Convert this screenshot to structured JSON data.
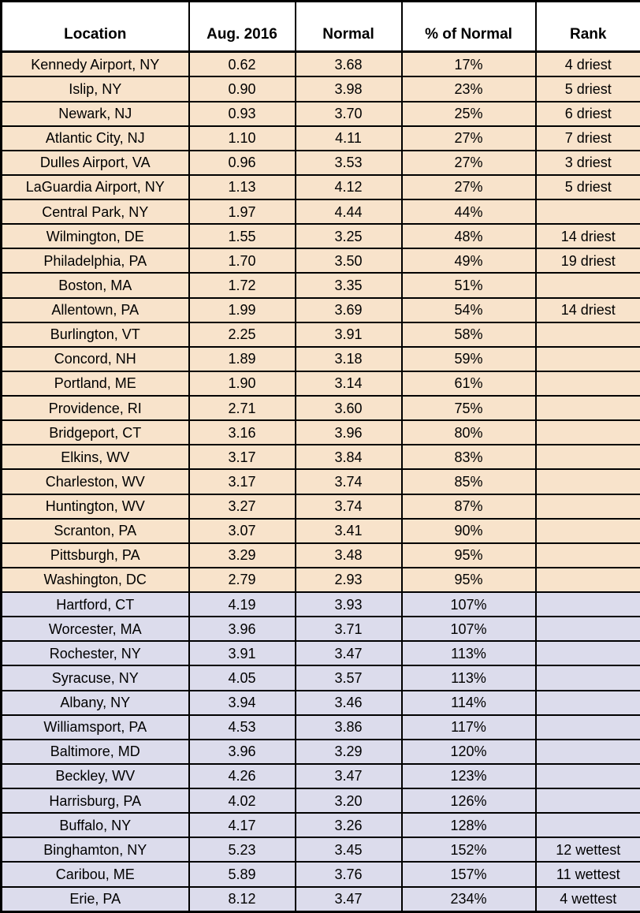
{
  "chart_data": {
    "type": "table",
    "columns": [
      {
        "key": "location",
        "label": "Location"
      },
      {
        "key": "aug_2016",
        "label": "Aug. 2016"
      },
      {
        "key": "normal",
        "label": "Normal"
      },
      {
        "key": "pct_of_normal",
        "label": "% of Normal"
      },
      {
        "key": "rank",
        "label": "Rank"
      }
    ],
    "rows": [
      {
        "location": "Kennedy Airport, NY",
        "aug_2016": "0.62",
        "normal": "3.68",
        "pct_of_normal": "17%",
        "rank": "4 driest",
        "group": "below_normal"
      },
      {
        "location": "Islip, NY",
        "aug_2016": "0.90",
        "normal": "3.98",
        "pct_of_normal": "23%",
        "rank": "5 driest",
        "group": "below_normal"
      },
      {
        "location": "Newark, NJ",
        "aug_2016": "0.93",
        "normal": "3.70",
        "pct_of_normal": "25%",
        "rank": "6 driest",
        "group": "below_normal"
      },
      {
        "location": "Atlantic City, NJ",
        "aug_2016": "1.10",
        "normal": "4.11",
        "pct_of_normal": "27%",
        "rank": "7 driest",
        "group": "below_normal"
      },
      {
        "location": "Dulles Airport, VA",
        "aug_2016": "0.96",
        "normal": "3.53",
        "pct_of_normal": "27%",
        "rank": "3 driest",
        "group": "below_normal"
      },
      {
        "location": "LaGuardia Airport, NY",
        "aug_2016": "1.13",
        "normal": "4.12",
        "pct_of_normal": "27%",
        "rank": "5 driest",
        "group": "below_normal"
      },
      {
        "location": "Central Park, NY",
        "aug_2016": "1.97",
        "normal": "4.44",
        "pct_of_normal": "44%",
        "rank": "",
        "group": "below_normal"
      },
      {
        "location": "Wilmington, DE",
        "aug_2016": "1.55",
        "normal": "3.25",
        "pct_of_normal": "48%",
        "rank": "14 driest",
        "group": "below_normal"
      },
      {
        "location": "Philadelphia, PA",
        "aug_2016": "1.70",
        "normal": "3.50",
        "pct_of_normal": "49%",
        "rank": "19 driest",
        "group": "below_normal"
      },
      {
        "location": "Boston, MA",
        "aug_2016": "1.72",
        "normal": "3.35",
        "pct_of_normal": "51%",
        "rank": "",
        "group": "below_normal"
      },
      {
        "location": "Allentown, PA",
        "aug_2016": "1.99",
        "normal": "3.69",
        "pct_of_normal": "54%",
        "rank": "14 driest",
        "group": "below_normal"
      },
      {
        "location": "Burlington, VT",
        "aug_2016": "2.25",
        "normal": "3.91",
        "pct_of_normal": "58%",
        "rank": "",
        "group": "below_normal"
      },
      {
        "location": "Concord, NH",
        "aug_2016": "1.89",
        "normal": "3.18",
        "pct_of_normal": "59%",
        "rank": "",
        "group": "below_normal"
      },
      {
        "location": "Portland, ME",
        "aug_2016": "1.90",
        "normal": "3.14",
        "pct_of_normal": "61%",
        "rank": "",
        "group": "below_normal"
      },
      {
        "location": "Providence, RI",
        "aug_2016": "2.71",
        "normal": "3.60",
        "pct_of_normal": "75%",
        "rank": "",
        "group": "below_normal"
      },
      {
        "location": "Bridgeport, CT",
        "aug_2016": "3.16",
        "normal": "3.96",
        "pct_of_normal": "80%",
        "rank": "",
        "group": "below_normal"
      },
      {
        "location": "Elkins, WV",
        "aug_2016": "3.17",
        "normal": "3.84",
        "pct_of_normal": "83%",
        "rank": "",
        "group": "below_normal"
      },
      {
        "location": "Charleston, WV",
        "aug_2016": "3.17",
        "normal": "3.74",
        "pct_of_normal": "85%",
        "rank": "",
        "group": "below_normal"
      },
      {
        "location": "Huntington, WV",
        "aug_2016": "3.27",
        "normal": "3.74",
        "pct_of_normal": "87%",
        "rank": "",
        "group": "below_normal"
      },
      {
        "location": "Scranton, PA",
        "aug_2016": "3.07",
        "normal": "3.41",
        "pct_of_normal": "90%",
        "rank": "",
        "group": "below_normal"
      },
      {
        "location": "Pittsburgh, PA",
        "aug_2016": "3.29",
        "normal": "3.48",
        "pct_of_normal": "95%",
        "rank": "",
        "group": "below_normal"
      },
      {
        "location": "Washington, DC",
        "aug_2016": "2.79",
        "normal": "2.93",
        "pct_of_normal": "95%",
        "rank": "",
        "group": "below_normal"
      },
      {
        "location": "Hartford, CT",
        "aug_2016": "4.19",
        "normal": "3.93",
        "pct_of_normal": "107%",
        "rank": "",
        "group": "above_normal"
      },
      {
        "location": "Worcester, MA",
        "aug_2016": "3.96",
        "normal": "3.71",
        "pct_of_normal": "107%",
        "rank": "",
        "group": "above_normal"
      },
      {
        "location": "Rochester, NY",
        "aug_2016": "3.91",
        "normal": "3.47",
        "pct_of_normal": "113%",
        "rank": "",
        "group": "above_normal"
      },
      {
        "location": "Syracuse, NY",
        "aug_2016": "4.05",
        "normal": "3.57",
        "pct_of_normal": "113%",
        "rank": "",
        "group": "above_normal"
      },
      {
        "location": "Albany, NY",
        "aug_2016": "3.94",
        "normal": "3.46",
        "pct_of_normal": "114%",
        "rank": "",
        "group": "above_normal"
      },
      {
        "location": "Williamsport, PA",
        "aug_2016": "4.53",
        "normal": "3.86",
        "pct_of_normal": "117%",
        "rank": "",
        "group": "above_normal"
      },
      {
        "location": "Baltimore, MD",
        "aug_2016": "3.96",
        "normal": "3.29",
        "pct_of_normal": "120%",
        "rank": "",
        "group": "above_normal"
      },
      {
        "location": "Beckley, WV",
        "aug_2016": "4.26",
        "normal": "3.47",
        "pct_of_normal": "123%",
        "rank": "",
        "group": "above_normal"
      },
      {
        "location": "Harrisburg, PA",
        "aug_2016": "4.02",
        "normal": "3.20",
        "pct_of_normal": "126%",
        "rank": "",
        "group": "above_normal"
      },
      {
        "location": "Buffalo, NY",
        "aug_2016": "4.17",
        "normal": "3.26",
        "pct_of_normal": "128%",
        "rank": "",
        "group": "above_normal"
      },
      {
        "location": "Binghamton, NY",
        "aug_2016": "5.23",
        "normal": "3.45",
        "pct_of_normal": "152%",
        "rank": "12 wettest",
        "group": "above_normal"
      },
      {
        "location": "Caribou, ME",
        "aug_2016": "5.89",
        "normal": "3.76",
        "pct_of_normal": "157%",
        "rank": "11 wettest",
        "group": "above_normal"
      },
      {
        "location": "Erie, PA",
        "aug_2016": "8.12",
        "normal": "3.47",
        "pct_of_normal": "234%",
        "rank": "4 wettest",
        "group": "above_normal"
      }
    ]
  },
  "colors": {
    "below_normal_row_bg": "#f8e3cb",
    "above_normal_row_bg": "#dcdcec",
    "header_bg": "#ffffff",
    "border": "#000000",
    "text": "#000000"
  }
}
